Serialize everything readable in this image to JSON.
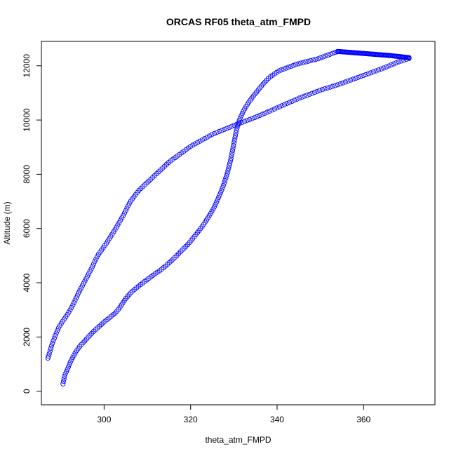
{
  "chart_data": {
    "type": "scatter",
    "title": "ORCAS RF05 theta_atm_FMPD",
    "xlabel": "theta_atm_FMPD",
    "ylabel": "Altitude (m)",
    "xlim": [
      285.5,
      376.5
    ],
    "ylim": [
      -500,
      12900
    ],
    "xticks": [
      300,
      320,
      340,
      360
    ],
    "yticks": [
      0,
      2000,
      4000,
      6000,
      8000,
      10000,
      12000
    ],
    "grid": false,
    "legend": "none",
    "marker": "open-circle",
    "color": "#0000ff",
    "series": [
      {
        "segments": [
          {
            "path": [
              [
                290.5,
                270
              ],
              [
                290.7,
                430
              ],
              [
                290.9,
                600
              ],
              [
                291.4,
                760
              ],
              [
                291.8,
                920
              ],
              [
                292.2,
                1080
              ],
              [
                292.8,
                1260
              ],
              [
                293.5,
                1470
              ],
              [
                294.5,
                1680
              ],
              [
                295.5,
                1850
              ],
              [
                296.5,
                2030
              ],
              [
                297.6,
                2210
              ],
              [
                298.8,
                2380
              ],
              [
                300.0,
                2550
              ],
              [
                301.3,
                2720
              ],
              [
                302.7,
                2900
              ],
              [
                303.7,
                3100
              ],
              [
                304.3,
                3250
              ],
              [
                305.0,
                3420
              ],
              [
                306.0,
                3600
              ],
              [
                307.0,
                3750
              ],
              [
                308.3,
                3920
              ],
              [
                310.0,
                4120
              ],
              [
                311.5,
                4300
              ],
              [
                313.0,
                4460
              ],
              [
                314.3,
                4630
              ],
              [
                315.5,
                4800
              ],
              [
                316.8,
                5000
              ],
              [
                318.0,
                5200
              ],
              [
                319.3,
                5400
              ],
              [
                320.5,
                5630
              ],
              [
                321.7,
                5870
              ],
              [
                322.8,
                6100
              ],
              [
                323.8,
                6340
              ],
              [
                324.7,
                6570
              ],
              [
                325.5,
                6800
              ],
              [
                326.2,
                7050
              ],
              [
                326.9,
                7300
              ],
              [
                327.5,
                7550
              ],
              [
                328.0,
                7800
              ],
              [
                328.5,
                8050
              ],
              [
                328.9,
                8300
              ],
              [
                329.3,
                8550
              ],
              [
                329.6,
                8800
              ],
              [
                329.9,
                9050
              ],
              [
                330.2,
                9300
              ],
              [
                330.5,
                9550
              ],
              [
                330.9,
                9800
              ],
              [
                331.4,
                10050
              ],
              [
                332.1,
                10300
              ],
              [
                333.0,
                10550
              ],
              [
                334.0,
                10780
              ],
              [
                335.0,
                10980
              ],
              [
                336.0,
                11180
              ],
              [
                337.0,
                11370
              ],
              [
                338.0,
                11540
              ],
              [
                339.0,
                11660
              ],
              [
                340.5,
                11820
              ],
              [
                342.5,
                11940
              ],
              [
                344.5,
                12060
              ],
              [
                347.0,
                12160
              ],
              [
                349.5,
                12260
              ],
              [
                351.5,
                12380
              ],
              [
                353.5,
                12500
              ],
              [
                354.0,
                12520
              ]
            ],
            "spacing": 95
          },
          {
            "path": [
              [
                354.0,
                12530
              ],
              [
                358.0,
                12480
              ],
              [
                362.0,
                12430
              ],
              [
                366.0,
                12380
              ],
              [
                370.5,
                12300
              ]
            ],
            "spacing": 8
          },
          {
            "path": [
              [
                370.5,
                12270
              ],
              [
                368.0,
                12140
              ],
              [
                365.0,
                11940
              ],
              [
                362.0,
                11760
              ],
              [
                358.0,
                11530
              ],
              [
                354.0,
                11300
              ],
              [
                350.0,
                11100
              ],
              [
                345.0,
                10800
              ],
              [
                340.0,
                10450
              ],
              [
                335.0,
                10100
              ],
              [
                330.0,
                9800
              ],
              [
                325.0,
                9470
              ],
              [
                320.0,
                9030
              ],
              [
                315.0,
                8450
              ],
              [
                311.0,
                7850
              ],
              [
                308.0,
                7400
              ],
              [
                306.0,
                6980
              ],
              [
                304.5,
                6500
              ],
              [
                302.5,
                5950
              ],
              [
                300.5,
                5450
              ],
              [
                298.5,
                5000
              ],
              [
                297.0,
                4500
              ],
              [
                295.5,
                4050
              ],
              [
                294.0,
                3600
              ],
              [
                292.7,
                3150
              ],
              [
                291.6,
                2850
              ],
              [
                290.5,
                2600
              ],
              [
                289.5,
                2350
              ],
              [
                288.7,
                2050
              ],
              [
                288.0,
                1750
              ],
              [
                287.5,
                1480
              ],
              [
                287.0,
                1220
              ]
            ],
            "spacing": 100
          }
        ]
      }
    ]
  }
}
